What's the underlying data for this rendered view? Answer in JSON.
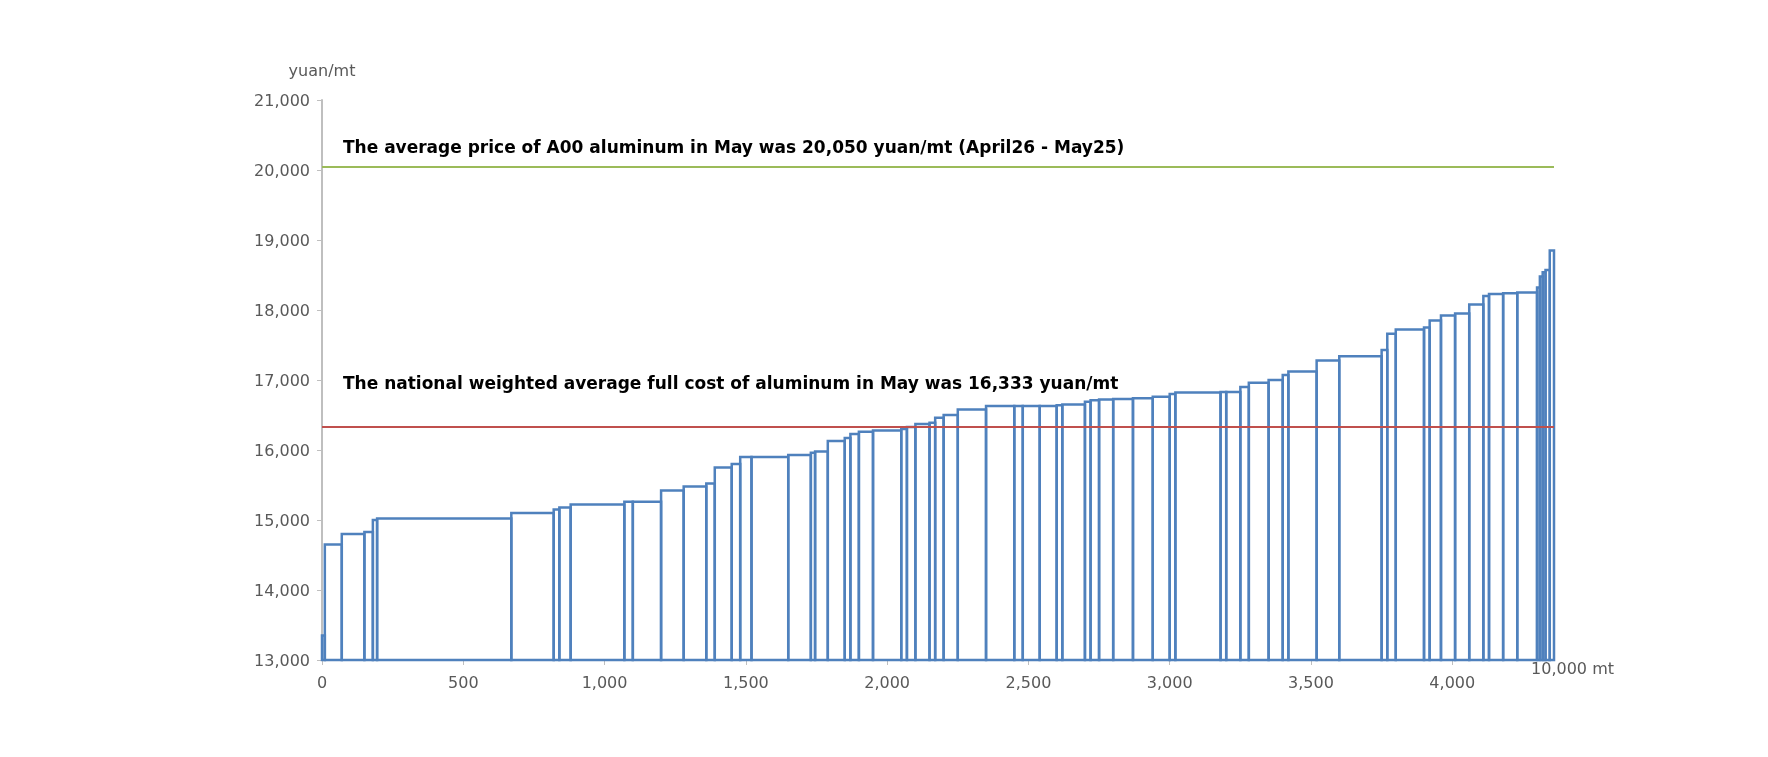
{
  "chart_data": {
    "type": "bar",
    "ylabel": "yuan/mt",
    "xlabel": "10,000 mt",
    "x": [
      5,
      40,
      110,
      165,
      187.5,
      432.5,
      745,
      830,
      860,
      975,
      1085,
      1150,
      1240,
      1320,
      1375,
      1420,
      1465,
      1500,
      1585,
      1690,
      1737.5,
      1767.5,
      1820,
      1860,
      1885,
      1925,
      2000,
      2060,
      2085,
      2125,
      2160,
      2185,
      2225,
      2300,
      2400,
      2465,
      2510,
      2570,
      2610,
      2660,
      2710,
      2735,
      2775,
      2835,
      2905,
      2970,
      3010,
      3100,
      3190,
      3225,
      3265,
      3315,
      3375,
      3410,
      3470,
      3560,
      3675,
      3760,
      3785,
      3850,
      3910,
      3940,
      3985,
      4035,
      4085,
      4120,
      4155,
      4205,
      4265,
      4305,
      4315,
      4325,
      4337.5,
      4352.5
    ],
    "series": [
      {
        "color": "#4f81bd",
        "values": [
          13350,
          14650,
          14800,
          14830,
          15000,
          15020,
          15100,
          15150,
          15180,
          15220,
          15260,
          15260,
          15420,
          15480,
          15520,
          15750,
          15800,
          15900,
          15900,
          15930,
          15960,
          15980,
          16130,
          16170,
          16230,
          16260,
          16280,
          16300,
          16330,
          16370,
          16390,
          16460,
          16500,
          16580,
          16630,
          16630,
          16630,
          16630,
          16640,
          16650,
          16690,
          16710,
          16720,
          16730,
          16740,
          16760,
          16800,
          16820,
          16830,
          16830,
          16900,
          16960,
          17000,
          17070,
          17120,
          17280,
          17340,
          17430,
          17660,
          17720,
          17750,
          17850,
          17920,
          17950,
          18080,
          18200,
          18230,
          18240,
          18250,
          18320,
          18480,
          18540,
          18570,
          18850
        ]
      }
    ],
    "xlim": [
      0,
      4360
    ],
    "xticks": [
      0,
      500,
      {
        "value": 1000,
        "label": "1,000"
      },
      {
        "value": 1500,
        "label": "1,500"
      },
      {
        "value": 2000,
        "label": "2,000"
      },
      {
        "value": 2500,
        "label": "2,500"
      },
      {
        "value": 3000,
        "label": "3,000"
      },
      {
        "value": 3500,
        "label": "3,500"
      },
      {
        "value": 4000,
        "label": "4,000"
      }
    ],
    "ylim": [
      13000,
      21000
    ],
    "yticks": [
      {
        "value": 13000,
        "label": "13,000"
      },
      {
        "value": 14000,
        "label": "14,000"
      },
      {
        "value": 15000,
        "label": "15,000"
      },
      {
        "value": 16000,
        "label": "16,000"
      },
      {
        "value": 17000,
        "label": "17,000"
      },
      {
        "value": 18000,
        "label": "18,000"
      },
      {
        "value": 19000,
        "label": "19,000"
      },
      {
        "value": 20000,
        "label": "20,000"
      },
      {
        "value": 21000,
        "label": "21,000"
      }
    ],
    "ref_lines": [
      {
        "axis": "y",
        "value": 20050,
        "label": "The average price of A00 aluminum in May was 20,050 yuan/mt (April26 - May25)",
        "color": "#9bbb59"
      },
      {
        "axis": "y",
        "value": 16333,
        "label": "The national weighted average full cost of aluminum in May was 16,333 yuan/mt",
        "color": "#c0504d"
      }
    ],
    "grid": false
  }
}
